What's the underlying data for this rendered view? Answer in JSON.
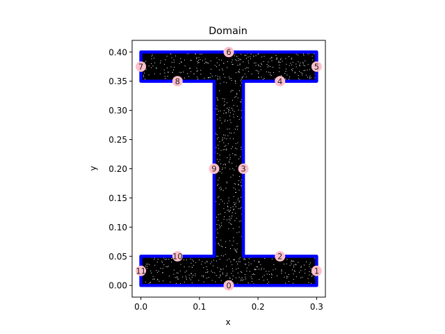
{
  "chart_data": {
    "type": "scatter",
    "title": "Domain",
    "xlabel": "x",
    "ylabel": "y",
    "xlim": [
      -0.015,
      0.315
    ],
    "ylim": [
      -0.02,
      0.42
    ],
    "xticks": [
      0.0,
      0.1,
      0.2,
      0.3
    ],
    "yticks": [
      0.0,
      0.05,
      0.1,
      0.15,
      0.2,
      0.25,
      0.3,
      0.35,
      0.4
    ],
    "xtick_labels": [
      "0.0",
      "0.1",
      "0.2",
      "0.3"
    ],
    "ytick_labels": [
      "0.00",
      "0.05",
      "0.10",
      "0.15",
      "0.20",
      "0.25",
      "0.30",
      "0.35",
      "0.40"
    ],
    "grid": false,
    "boundary_color": "#0000ff",
    "interior_point_color": "#000000",
    "marker_color": "#ffc0cb",
    "boundary_polygon": [
      [
        0.0,
        0.0
      ],
      [
        0.3,
        0.0
      ],
      [
        0.3,
        0.05
      ],
      [
        0.175,
        0.05
      ],
      [
        0.175,
        0.35
      ],
      [
        0.3,
        0.35
      ],
      [
        0.3,
        0.4
      ],
      [
        0.0,
        0.4
      ],
      [
        0.0,
        0.35
      ],
      [
        0.125,
        0.35
      ],
      [
        0.125,
        0.05
      ],
      [
        0.0,
        0.05
      ]
    ],
    "edge_markers": [
      {
        "label": "0",
        "x": 0.15,
        "y": 0.0
      },
      {
        "label": "1",
        "x": 0.3,
        "y": 0.025
      },
      {
        "label": "2",
        "x": 0.2375,
        "y": 0.05
      },
      {
        "label": "3",
        "x": 0.175,
        "y": 0.2
      },
      {
        "label": "4",
        "x": 0.2375,
        "y": 0.35
      },
      {
        "label": "5",
        "x": 0.3,
        "y": 0.375
      },
      {
        "label": "6",
        "x": 0.15,
        "y": 0.4
      },
      {
        "label": "7",
        "x": 0.0,
        "y": 0.375
      },
      {
        "label": "8",
        "x": 0.0625,
        "y": 0.35
      },
      {
        "label": "9",
        "x": 0.125,
        "y": 0.2
      },
      {
        "label": "10",
        "x": 0.0625,
        "y": 0.05
      },
      {
        "label": "11",
        "x": 0.0,
        "y": 0.025
      }
    ]
  }
}
